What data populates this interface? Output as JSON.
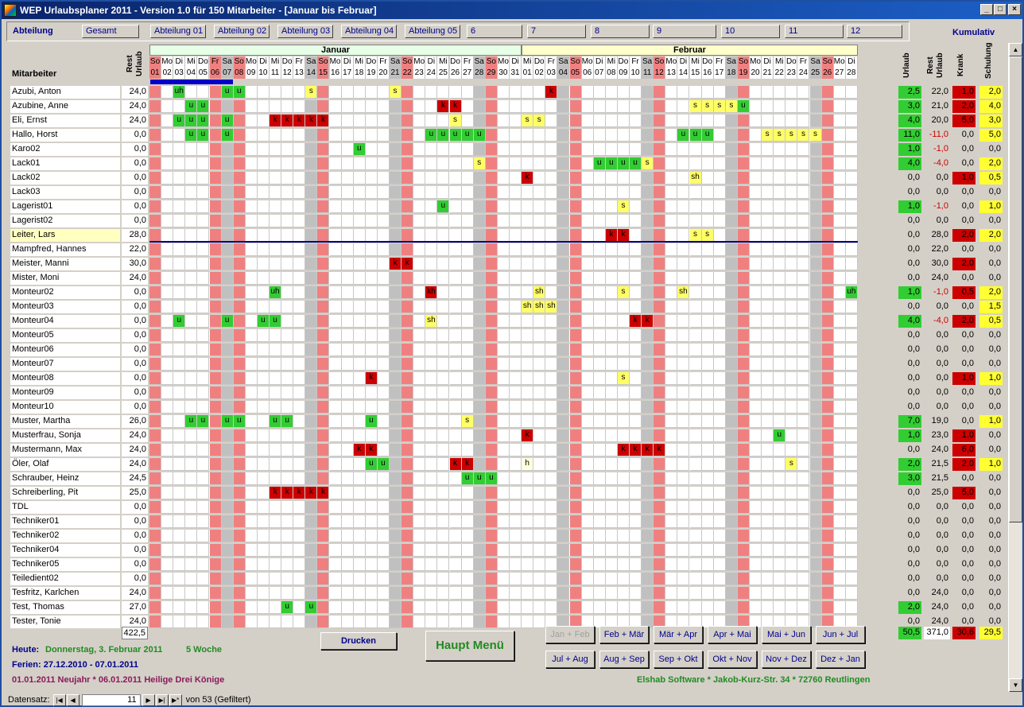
{
  "window": {
    "title": "WEP Urlaubsplaner 2011 - Version 1.0 für 150 Mitarbeiter - [Januar bis Februar]",
    "min": "_",
    "max": "□",
    "close": "×"
  },
  "tabs": {
    "label": "Abteilung",
    "items": [
      "Gesamt",
      "Abteilung 01",
      "Abteilung 02",
      "Abteilung 03",
      "Abteilung 04",
      "Abteilung 05",
      "6",
      "7",
      "8",
      "9",
      "10",
      "11",
      "12"
    ]
  },
  "kumulativ": "Kumulativ",
  "headers": {
    "mitarbeiter": "Mitarbeiter",
    "rest_urlaub": "Rest\nUrlaub",
    "urlaub": "Urlaub",
    "rest_urlaub2": "Rest\nUrlaub",
    "krank": "Krank",
    "schulung": "Schulung"
  },
  "months": [
    {
      "name": "Januar",
      "days": 31,
      "start": 6
    },
    {
      "name": "Februar",
      "days": 28,
      "start": 2
    }
  ],
  "dayabbr": [
    "Mo",
    "Di",
    "Mi",
    "Do",
    "Fr",
    "Sa",
    "So"
  ],
  "holidays": [
    "1-1",
    "1-6"
  ],
  "employees": [
    {
      "name": "Azubi, Anton",
      "rest": "24,0",
      "k": [
        "2,5",
        "22,0",
        "1,0",
        "2,0"
      ],
      "m": {
        "1-3": "uh",
        "1-7": "u",
        "1-8": "u",
        "1-14": "s",
        "1-21": "s",
        "2-3": "k"
      }
    },
    {
      "name": "Azubine, Anne",
      "rest": "24,0",
      "k": [
        "3,0",
        "21,0",
        "2,0",
        "4,0"
      ],
      "m": {
        "1-4": "u",
        "1-5": "u",
        "1-25": "k",
        "1-26": "k",
        "2-15": "s",
        "2-16": "s",
        "2-17": "s",
        "2-18": "s",
        "2-19": "u"
      }
    },
    {
      "name": "Eli, Ernst",
      "rest": "24,0",
      "k": [
        "4,0",
        "20,0",
        "5,0",
        "3,0"
      ],
      "m": {
        "1-3": "u",
        "1-4": "u",
        "1-5": "u",
        "1-7": "u",
        "1-11": "k",
        "1-12": "k",
        "1-13": "k",
        "1-14": "k",
        "1-15": "k",
        "1-26": "s",
        "2-1": "s",
        "2-2": "s"
      }
    },
    {
      "name": "Hallo, Horst",
      "rest": "0,0",
      "k": [
        "11,0",
        "-11,0",
        "0,0",
        "5,0"
      ],
      "m": {
        "1-4": "u",
        "1-5": "u",
        "1-7": "u",
        "1-24": "u",
        "1-25": "u",
        "1-26": "u",
        "1-27": "u",
        "1-28": "u",
        "2-14": "u",
        "2-15": "u",
        "2-16": "u",
        "2-21": "s",
        "2-22": "s",
        "2-23": "s",
        "2-24": "s",
        "2-25": "s"
      }
    },
    {
      "name": "Karo02",
      "rest": "0,0",
      "k": [
        "1,0",
        "-1,0",
        "0,0",
        "0,0"
      ],
      "m": {
        "1-18": "u"
      }
    },
    {
      "name": "Lack01",
      "rest": "0,0",
      "k": [
        "4,0",
        "-4,0",
        "0,0",
        "2,0"
      ],
      "m": {
        "1-28": "s",
        "2-7": "u",
        "2-8": "u",
        "2-9": "u",
        "2-10": "u",
        "2-11": "s"
      }
    },
    {
      "name": "Lack02",
      "rest": "0,0",
      "k": [
        "0,0",
        "0,0",
        "1,0",
        "0,5"
      ],
      "m": {
        "2-1": "k",
        "2-15": "sh"
      }
    },
    {
      "name": "Lack03",
      "rest": "0,0",
      "k": [
        "0,0",
        "0,0",
        "0,0",
        "0,0"
      ],
      "m": {}
    },
    {
      "name": "Lagerist01",
      "rest": "0,0",
      "k": [
        "1,0",
        "-1,0",
        "0,0",
        "1,0"
      ],
      "m": {
        "1-25": "u",
        "2-9": "s"
      }
    },
    {
      "name": "Lagerist02",
      "rest": "0,0",
      "k": [
        "0,0",
        "0,0",
        "0,0",
        "0,0"
      ],
      "m": {}
    },
    {
      "name": "Leiter, Lars",
      "rest": "28,0",
      "k": [
        "0,0",
        "28,0",
        "2,0",
        "2,0"
      ],
      "m": {
        "2-8": "k",
        "2-9": "k",
        "2-15": "s",
        "2-16": "s"
      },
      "highlight": true
    },
    {
      "name": "Mampfred, Hannes",
      "rest": "22,0",
      "k": [
        "0,0",
        "22,0",
        "0,0",
        "0,0"
      ],
      "m": {}
    },
    {
      "name": "Meister, Manni",
      "rest": "30,0",
      "k": [
        "0,0",
        "30,0",
        "2,0",
        "0,0"
      ],
      "m": {
        "1-21": "k",
        "1-22": "k"
      }
    },
    {
      "name": "Mister, Moni",
      "rest": "24,0",
      "k": [
        "0,0",
        "24,0",
        "0,0",
        "0,0"
      ],
      "m": {}
    },
    {
      "name": "Monteur02",
      "rest": "0,0",
      "k": [
        "1,0",
        "-1,0",
        "0,5",
        "2,0"
      ],
      "m": {
        "1-11": "uh",
        "1-24": "kh",
        "2-2": "sh",
        "2-9": "s",
        "2-14": "sh",
        "2-28": "uh"
      }
    },
    {
      "name": "Monteur03",
      "rest": "0,0",
      "k": [
        "0,0",
        "0,0",
        "0,0",
        "1,5"
      ],
      "m": {
        "2-1": "sh",
        "2-2": "sh",
        "2-3": "sh"
      }
    },
    {
      "name": "Monteur04",
      "rest": "0,0",
      "k": [
        "4,0",
        "-4,0",
        "2,0",
        "0,5"
      ],
      "m": {
        "1-3": "u",
        "1-7": "u",
        "1-10": "u",
        "1-11": "u",
        "1-24": "sh",
        "2-10": "k",
        "2-11": "k"
      }
    },
    {
      "name": "Monteur05",
      "rest": "0,0",
      "k": [
        "0,0",
        "0,0",
        "0,0",
        "0,0"
      ],
      "m": {}
    },
    {
      "name": "Monteur06",
      "rest": "0,0",
      "k": [
        "0,0",
        "0,0",
        "0,0",
        "0,0"
      ],
      "m": {}
    },
    {
      "name": "Monteur07",
      "rest": "0,0",
      "k": [
        "0,0",
        "0,0",
        "0,0",
        "0,0"
      ],
      "m": {}
    },
    {
      "name": "Monteur08",
      "rest": "0,0",
      "k": [
        "0,0",
        "0,0",
        "1,0",
        "1,0"
      ],
      "m": {
        "1-19": "k",
        "2-9": "s"
      }
    },
    {
      "name": "Monteur09",
      "rest": "0,0",
      "k": [
        "0,0",
        "0,0",
        "0,0",
        "0,0"
      ],
      "m": {}
    },
    {
      "name": "Monteur10",
      "rest": "0,0",
      "k": [
        "0,0",
        "0,0",
        "0,0",
        "0,0"
      ],
      "m": {}
    },
    {
      "name": "Muster, Martha",
      "rest": "26,0",
      "k": [
        "7,0",
        "19,0",
        "0,0",
        "1,0"
      ],
      "m": {
        "1-4": "u",
        "1-5": "u",
        "1-7": "u",
        "1-8": "u",
        "1-11": "u",
        "1-12": "u",
        "1-19": "u",
        "1-27": "s"
      }
    },
    {
      "name": "Musterfrau, Sonja",
      "rest": "24,0",
      "k": [
        "1,0",
        "23,0",
        "1,0",
        "0,0"
      ],
      "m": {
        "2-1": "k",
        "2-22": "u"
      }
    },
    {
      "name": "Mustermann, Max",
      "rest": "24,0",
      "k": [
        "0,0",
        "24,0",
        "6,0",
        "0,0"
      ],
      "m": {
        "1-18": "k",
        "1-19": "k",
        "2-9": "k",
        "2-10": "k",
        "2-11": "k",
        "2-12": "k"
      }
    },
    {
      "name": "Öler, Olaf",
      "rest": "24,0",
      "k": [
        "2,0",
        "21,5",
        "2,0",
        "1,0"
      ],
      "m": {
        "1-19": "u",
        "1-20": "u",
        "1-26": "k",
        "1-27": "k",
        "2-1": "h",
        "2-23": "s"
      }
    },
    {
      "name": "Schrauber, Heinz",
      "rest": "24,5",
      "k": [
        "3,0",
        "21,5",
        "0,0",
        "0,0"
      ],
      "m": {
        "1-27": "u",
        "1-28": "u",
        "1-29": "u"
      }
    },
    {
      "name": "Schreiberling, Pit",
      "rest": "25,0",
      "k": [
        "0,0",
        "25,0",
        "5,0",
        "0,0"
      ],
      "m": {
        "1-11": "k",
        "1-12": "k",
        "1-13": "k",
        "1-14": "k",
        "1-15": "k"
      }
    },
    {
      "name": "TDL",
      "rest": "0,0",
      "k": [
        "0,0",
        "0,0",
        "0,0",
        "0,0"
      ],
      "m": {}
    },
    {
      "name": "Techniker01",
      "rest": "0,0",
      "k": [
        "0,0",
        "0,0",
        "0,0",
        "0,0"
      ],
      "m": {}
    },
    {
      "name": "Techniker02",
      "rest": "0,0",
      "k": [
        "0,0",
        "0,0",
        "0,0",
        "0,0"
      ],
      "m": {}
    },
    {
      "name": "Techniker04",
      "rest": "0,0",
      "k": [
        "0,0",
        "0,0",
        "0,0",
        "0,0"
      ],
      "m": {}
    },
    {
      "name": "Techniker05",
      "rest": "0,0",
      "k": [
        "0,0",
        "0,0",
        "0,0",
        "0,0"
      ],
      "m": {}
    },
    {
      "name": "Teiledient02",
      "rest": "0,0",
      "k": [
        "0,0",
        "0,0",
        "0,0",
        "0,0"
      ],
      "m": {}
    },
    {
      "name": "Tesfritz, Karlchen",
      "rest": "24,0",
      "k": [
        "0,0",
        "24,0",
        "0,0",
        "0,0"
      ],
      "m": {}
    },
    {
      "name": "Test, Thomas",
      "rest": "27,0",
      "k": [
        "2,0",
        "24,0",
        "0,0",
        "0,0"
      ],
      "m": {
        "1-12": "u",
        "1-14": "u"
      }
    },
    {
      "name": "Tester, Tonie",
      "rest": "24,0",
      "k": [
        "0,0",
        "24,0",
        "0,0",
        "0,0"
      ],
      "m": {}
    }
  ],
  "totals": {
    "rest": "422,5",
    "urlaub": "50,5",
    "rest2": "371,0",
    "krank": "30,6",
    "schulung": "29,5"
  },
  "buttons": {
    "drucken": "Drucken",
    "haupt": "Haupt Menü",
    "periods": [
      "Jan + Feb",
      "Feb + Mär",
      "Mär + Apr",
      "Apr + Mai",
      "Mai + Jun",
      "Jun + Jul",
      "Jul + Aug",
      "Aug + Sep",
      "Sep + Okt",
      "Okt + Nov",
      "Nov + Dez",
      "Dez + Jan"
    ]
  },
  "info": {
    "heute_label": "Heute:",
    "heute": "Donnerstag, 3. Februar 2011",
    "woche": "5 Woche",
    "ferien": "Ferien: 27.12.2010 - 07.01.2011",
    "feiertage": "01.01.2011 Neujahr  *  06.01.2011 Heilige Drei Könige",
    "company": "Elshab Software * Jakob-Kurz-Str. 34 * 72760 Reutlingen"
  },
  "nav": {
    "label": "Datensatz:",
    "current": "11",
    "of": "von  53 (Gefiltert)"
  }
}
